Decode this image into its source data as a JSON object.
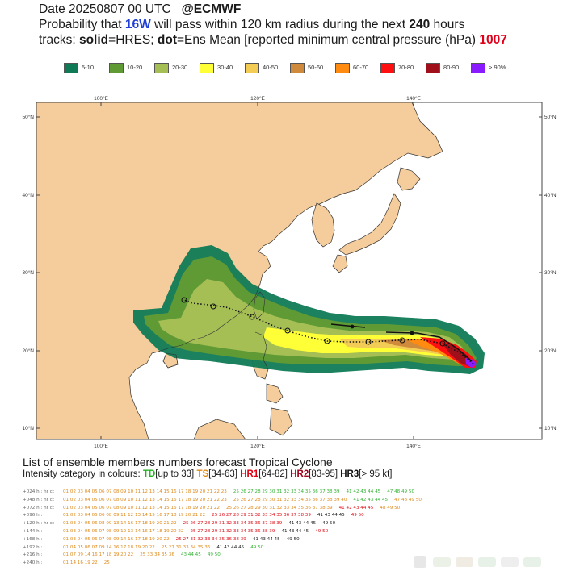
{
  "header": {
    "line1_prefix": "Date 20250807 00 UTC",
    "line1_source": "@ECMWF",
    "line2_a": "Probability that",
    "line2_storm": "16W",
    "line2_b": "will pass within 120 km radius during the next",
    "line2_hours": "240",
    "line2_c": "hours",
    "line3_a": "tracks:",
    "line3_solid": "solid",
    "line3_b": "=HRES;",
    "line3_dot": "dot",
    "line3_c": "=Ens Mean [reported minimum central pressure (hPa)",
    "line3_pressure": "1007"
  },
  "legend": [
    {
      "label": "5-10",
      "color": "#0f7a55"
    },
    {
      "label": "10-20",
      "color": "#5f9a35"
    },
    {
      "label": "20-30",
      "color": "#a6bf55"
    },
    {
      "label": "30-40",
      "color": "#ffff38"
    },
    {
      "label": "40-50",
      "color": "#f2cc55"
    },
    {
      "label": "50-60",
      "color": "#d08a3c"
    },
    {
      "label": "60-70",
      "color": "#ff8c10"
    },
    {
      "label": "70-80",
      "color": "#ff1010"
    },
    {
      "label": "80-90",
      "color": "#a0101a"
    },
    {
      "label": "> 90%",
      "color": "#8a1aff"
    }
  ],
  "map": {
    "top_lon_labels": [
      "100°E",
      "120°E",
      "140°E"
    ],
    "bottom_lon_labels": [
      "100°E",
      "120°E",
      "140°E"
    ],
    "left_lat_labels": [
      "50°N",
      "40°N",
      "30°N",
      "20°N",
      "10°N"
    ],
    "right_lat_labels": [
      "50°N",
      "40°N",
      "30°N",
      "20°N",
      "10°N"
    ],
    "land_color": "#f5cd9c",
    "sea_color": "#ffffff"
  },
  "lower": {
    "title": "List of ensemble members numbers forecast Tropical Cyclone",
    "intensity_prefix": "Intensity category in colours:",
    "td": "TD",
    "td_range": "[up to 33]",
    "ts": "TS",
    "ts_range": "[34-63]",
    "hr1": "HR1",
    "hr1_range": "[64-82]",
    "hr2": "HR2",
    "hr2_range": "[83-95]",
    "hr3": "HR3",
    "hr3_range": "[> 95 kt]"
  },
  "ensemble_rows": [
    {
      "lead": "+024 h : hr ct",
      "segments": [
        [
          "01 02 03 04 05 06 07 08 09 10 11 12 13 14 15 16 17 18 19 20 21 22 23",
          "o"
        ],
        [
          "25 26 27 28 29 30 31 32 33 34 35 36 37 38 39",
          "g"
        ],
        [
          "41 42 43 44 45",
          "g"
        ],
        [
          "47 48 49 50",
          "g"
        ]
      ]
    },
    {
      "lead": "+048 h : hr ct",
      "segments": [
        [
          "01 02 03 04 05 06 07 08 09 10 11 12 13 14 15 16 17 18 19 20 21 22 23",
          "o"
        ],
        [
          "25 26 27 28 29 30 31 32 33 34 35 36 37 38 39 40",
          "o"
        ],
        [
          "41 42 43 44 45",
          "g"
        ],
        [
          "47 48 49 50",
          "o"
        ]
      ]
    },
    {
      "lead": "+072 h : hr ct",
      "segments": [
        [
          "01 02 03 04 05 06 07 08 09 10 11 12 13 14 15 16 17 18 19 20 21 22",
          "o"
        ],
        [
          "25 26 27 28 29 30 31 32 33 34 35 36 37 38 39",
          "o"
        ],
        [
          "41 42 43 44 45",
          "r"
        ],
        [
          "48 49 50",
          "o"
        ]
      ]
    },
    {
      "lead": "+096 h :",
      "segments": [
        [
          "01 02 03 04 05 06 08 09 11 12 13 14 15 16 17 18 19 20 21 22",
          "o"
        ],
        [
          "25 26 27 28 29 31 32 33 34 35 36 37 38 39",
          "r"
        ],
        [
          "41 43 44 45",
          "k"
        ],
        [
          "49 50",
          "r"
        ]
      ]
    },
    {
      "lead": "+120 h : hr ct",
      "segments": [
        [
          "01 03 04 05 06 08 09 13 14 16 17 18 19 20 21 22",
          "o"
        ],
        [
          "25 26 27 28 29 31 32 33 34 35 36 37 38 39",
          "r"
        ],
        [
          "41 43 44 45",
          "k"
        ],
        [
          "49 50",
          "k"
        ]
      ]
    },
    {
      "lead": "+144 h :",
      "segments": [
        [
          "01 03 04 05 06 07 08 09 12 13 14 16 17 18 19 20 22",
          "o"
        ],
        [
          "25 27 28 29 31 32 33 34 35 36 38 39",
          "r"
        ],
        [
          "41 43 44 45",
          "k"
        ],
        [
          "49 50",
          "r"
        ]
      ]
    },
    {
      "lead": "+168 h :",
      "segments": [
        [
          "01 03 04 05 06 07 08 09 14 16 17 18 19 20 22",
          "o"
        ],
        [
          "25 27 31 32 33 34 35 36 38 39",
          "r"
        ],
        [
          "41 43 44 45",
          "k"
        ],
        [
          "49 50",
          "k"
        ]
      ]
    },
    {
      "lead": "+192 h :",
      "segments": [
        [
          "01 04 05 06 07 09 14 16 17 18 19 20 22",
          "o"
        ],
        [
          "25 27 31 33 34 35 36",
          "o"
        ],
        [
          "41 43 44 45",
          "k"
        ],
        [
          "49 50",
          "g"
        ]
      ]
    },
    {
      "lead": "+216 h :",
      "segments": [
        [
          "01 07 09 14 16 17 18 19 20 22",
          "o"
        ],
        [
          "25 33 34 35 36",
          "o"
        ],
        [
          "43 44 45",
          "g"
        ],
        [
          "49 50",
          "g"
        ]
      ]
    },
    {
      "lead": "+240 h :",
      "segments": [
        [
          "01 14 16 19 22",
          "o"
        ],
        [
          "25",
          "o"
        ]
      ]
    }
  ]
}
